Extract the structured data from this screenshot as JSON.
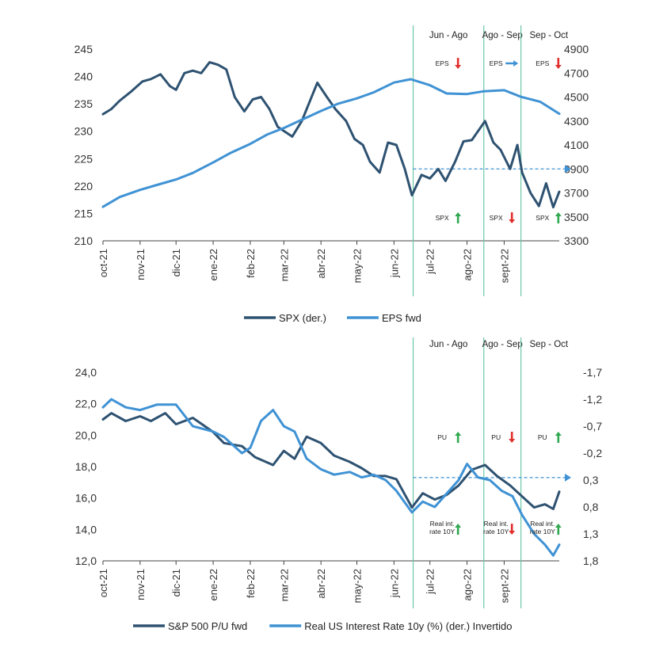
{
  "colors": {
    "dark_series": "#2e5271",
    "light_series": "#3f92d4",
    "period_line": "#6cc9a7",
    "arrow_green": "#2fa84f",
    "arrow_red": "#e0302d",
    "arrow_blue": "#3f92d4",
    "axis": "#444444"
  },
  "x_axis_labels": [
    "oct-21",
    "nov-21",
    "dic-21",
    "ene-22",
    "feb-22",
    "mar-22",
    "abr-22",
    "may-22",
    "jun-22",
    "jul-22",
    "ago-22",
    "sept-22"
  ],
  "chart_data": [
    {
      "type": "line",
      "title": "",
      "x_range": [
        "2021-10-01",
        "2022-10-17"
      ],
      "y_left": {
        "ticks": [
          "245",
          "240",
          "235",
          "230",
          "225",
          "220",
          "215",
          "210"
        ],
        "range": [
          210,
          245
        ]
      },
      "y_right": {
        "ticks": [
          "4900",
          "4700",
          "4500",
          "4300",
          "4100",
          "3900",
          "3700",
          "3500",
          "3300"
        ],
        "range": [
          3300,
          4900
        ]
      },
      "series": [
        {
          "name": "SPX (der.)",
          "axis": "right",
          "color": "#2e5271",
          "x": [
            "2021-10-01",
            "2021-10-08",
            "2021-10-15",
            "2021-10-25",
            "2021-11-03",
            "2021-11-10",
            "2021-11-18",
            "2021-11-26",
            "2021-12-01",
            "2021-12-08",
            "2021-12-15",
            "2021-12-22",
            "2021-12-29",
            "2022-01-05",
            "2022-01-12",
            "2022-01-19",
            "2022-01-27",
            "2022-02-03",
            "2022-02-10",
            "2022-02-17",
            "2022-02-24",
            "2022-03-08",
            "2022-03-16",
            "2022-03-29",
            "2022-04-06",
            "2022-04-13",
            "2022-04-22",
            "2022-04-29",
            "2022-05-06",
            "2022-05-12",
            "2022-05-20",
            "2022-05-27",
            "2022-06-03",
            "2022-06-10",
            "2022-06-16",
            "2022-06-24",
            "2022-07-01",
            "2022-07-08",
            "2022-07-14",
            "2022-07-22",
            "2022-07-29",
            "2022-08-05",
            "2022-08-16",
            "2022-08-23",
            "2022-08-29",
            "2022-09-06",
            "2022-09-12",
            "2022-09-16",
            "2022-09-23",
            "2022-09-30",
            "2022-10-06",
            "2022-10-12",
            "2022-10-17"
          ],
          "y": [
            4357,
            4400,
            4470,
            4550,
            4630,
            4650,
            4690,
            4590,
            4560,
            4700,
            4720,
            4700,
            4790,
            4770,
            4730,
            4500,
            4380,
            4480,
            4500,
            4400,
            4250,
            4170,
            4300,
            4620,
            4500,
            4400,
            4300,
            4150,
            4100,
            3960,
            3870,
            4120,
            4100,
            3900,
            3680,
            3850,
            3820,
            3900,
            3800,
            3960,
            4130,
            4140,
            4300,
            4120,
            4060,
            3900,
            4100,
            3870,
            3700,
            3590,
            3780,
            3580,
            3710
          ]
        },
        {
          "name": "EPS fwd",
          "axis": "left",
          "color": "#3f92d4",
          "x": [
            "2021-10-01",
            "2021-10-15",
            "2021-11-01",
            "2021-11-15",
            "2021-12-01",
            "2021-12-15",
            "2022-01-01",
            "2022-01-15",
            "2022-02-01",
            "2022-02-15",
            "2022-03-01",
            "2022-03-15",
            "2022-04-01",
            "2022-04-15",
            "2022-05-01",
            "2022-05-15",
            "2022-06-01",
            "2022-06-15",
            "2022-07-01",
            "2022-07-15",
            "2022-08-01",
            "2022-08-15",
            "2022-09-01",
            "2022-09-15",
            "2022-10-01",
            "2022-10-17"
          ],
          "y": [
            216.2,
            218.0,
            219.3,
            220.2,
            221.2,
            222.4,
            224.3,
            226.0,
            227.7,
            229.4,
            230.6,
            232.0,
            233.7,
            235.0,
            236.0,
            237.1,
            238.9,
            239.5,
            238.4,
            236.9,
            236.8,
            237.3,
            237.5,
            236.3,
            235.4,
            233.2
          ]
        }
      ],
      "periods": [
        {
          "label": "Jun - Ago",
          "start": "2022-06-17"
        },
        {
          "label": "Ago - Sep",
          "start": "2022-08-15"
        },
        {
          "label": "Sep - Oct",
          "start": "2022-09-15"
        }
      ],
      "reference_line": {
        "axis": "right",
        "value": 3900,
        "from": "2022-06-17"
      },
      "annotations": [
        {
          "label": "EPS",
          "direction": "down",
          "color": "red",
          "period": 0
        },
        {
          "label": "EPS",
          "direction": "right",
          "color": "blue",
          "period": 1
        },
        {
          "label": "EPS",
          "direction": "down",
          "color": "red",
          "period": 2
        },
        {
          "label": "SPX",
          "direction": "up",
          "color": "green",
          "period": 0
        },
        {
          "label": "SPX",
          "direction": "down",
          "color": "red",
          "period": 1
        },
        {
          "label": "SPX",
          "direction": "up",
          "color": "green",
          "period": 2
        }
      ]
    },
    {
      "type": "line",
      "title": "",
      "x_range": [
        "2021-10-01",
        "2022-10-17"
      ],
      "y_left": {
        "ticks": [
          "24,0",
          "22,0",
          "20,0",
          "18,0",
          "16,0",
          "14,0",
          "12,0"
        ],
        "range": [
          12,
          24
        ]
      },
      "y_right": {
        "ticks": [
          "-1,7",
          "-1,2",
          "-0,7",
          "-0,2",
          "0,3",
          "0,8",
          "1,3",
          "1,8"
        ],
        "range": [
          -1.7,
          1.8
        ],
        "inverted": true
      },
      "series": [
        {
          "name": "S&P 500 P/U fwd",
          "axis": "left",
          "color": "#2e5271",
          "x": [
            "2021-10-01",
            "2021-10-08",
            "2021-10-20",
            "2021-11-01",
            "2021-11-10",
            "2021-11-22",
            "2021-12-01",
            "2021-12-15",
            "2022-01-01",
            "2022-01-10",
            "2022-01-25",
            "2022-02-05",
            "2022-02-20",
            "2022-03-01",
            "2022-03-10",
            "2022-03-20",
            "2022-04-01",
            "2022-04-12",
            "2022-04-25",
            "2022-05-05",
            "2022-05-15",
            "2022-05-25",
            "2022-06-03",
            "2022-06-16",
            "2022-06-25",
            "2022-07-05",
            "2022-07-15",
            "2022-07-25",
            "2022-08-05",
            "2022-08-16",
            "2022-08-26",
            "2022-09-06",
            "2022-09-16",
            "2022-09-26",
            "2022-10-05",
            "2022-10-12",
            "2022-10-17"
          ],
          "y": [
            21.0,
            21.4,
            20.9,
            21.2,
            20.9,
            21.4,
            20.7,
            21.1,
            20.2,
            19.5,
            19.3,
            18.6,
            18.1,
            19.0,
            18.5,
            19.9,
            19.5,
            18.7,
            18.3,
            17.9,
            17.4,
            17.4,
            17.2,
            15.4,
            16.3,
            15.9,
            16.2,
            16.8,
            17.8,
            18.1,
            17.4,
            16.8,
            16.1,
            15.4,
            15.6,
            15.3,
            16.4
          ]
        },
        {
          "name": "Real US Interest Rate 10y (%) (der.) Invertido",
          "axis": "right",
          "inverted": true,
          "color": "#3f92d4",
          "x": [
            "2021-10-01",
            "2021-10-08",
            "2021-10-20",
            "2021-11-01",
            "2021-11-15",
            "2021-12-01",
            "2021-12-15",
            "2022-01-01",
            "2022-01-10",
            "2022-01-25",
            "2022-02-01",
            "2022-02-10",
            "2022-02-20",
            "2022-03-01",
            "2022-03-10",
            "2022-03-20",
            "2022-04-01",
            "2022-04-12",
            "2022-04-25",
            "2022-05-05",
            "2022-05-15",
            "2022-05-25",
            "2022-06-03",
            "2022-06-16",
            "2022-06-25",
            "2022-07-05",
            "2022-07-15",
            "2022-07-25",
            "2022-08-01",
            "2022-08-10",
            "2022-08-20",
            "2022-08-30",
            "2022-09-08",
            "2022-09-16",
            "2022-09-26",
            "2022-10-05",
            "2022-10-12",
            "2022-10-17"
          ],
          "y": [
            -1.05,
            -1.2,
            -1.05,
            -1.0,
            -1.1,
            -1.1,
            -0.7,
            -0.6,
            -0.5,
            -0.2,
            -0.3,
            -0.8,
            -1.0,
            -0.7,
            -0.6,
            -0.1,
            0.1,
            0.2,
            0.15,
            0.25,
            0.2,
            0.3,
            0.5,
            0.9,
            0.7,
            0.8,
            0.55,
            0.3,
            0.0,
            0.25,
            0.3,
            0.5,
            0.6,
            0.95,
            1.3,
            1.5,
            1.7,
            1.5
          ]
        }
      ],
      "periods": [
        {
          "label": "Jun - Ago",
          "start": "2022-06-17"
        },
        {
          "label": "Ago - Sep",
          "start": "2022-08-15"
        },
        {
          "label": "Sep - Oct",
          "start": "2022-09-15"
        }
      ],
      "reference_line": {
        "axis": "left",
        "value": 17.3,
        "from": "2022-06-17"
      },
      "annotations": [
        {
          "label": "PU",
          "direction": "up",
          "color": "green",
          "period": 0
        },
        {
          "label": "PU",
          "direction": "down",
          "color": "red",
          "period": 1
        },
        {
          "label": "PU",
          "direction": "up",
          "color": "green",
          "period": 2
        },
        {
          "label": "Real int. rate 10Y",
          "direction": "up",
          "color": "green",
          "period": 0
        },
        {
          "label": "Real int. rate 10Y",
          "direction": "down",
          "color": "red",
          "period": 1
        },
        {
          "label": "Real int. rate 10Y",
          "direction": "up",
          "color": "green",
          "period": 2
        }
      ]
    }
  ]
}
